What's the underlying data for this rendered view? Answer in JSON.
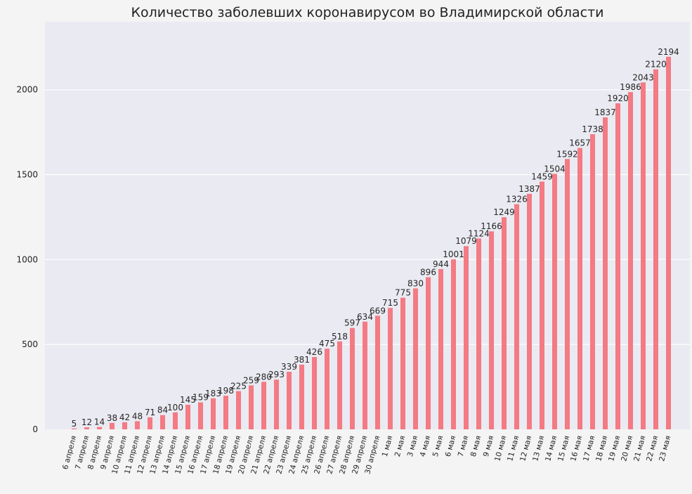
{
  "chart_data": {
    "type": "bar",
    "title": "Количество заболевших коронавирусом во Владимирской области",
    "xlabel": "",
    "ylabel": "",
    "ylim": [
      0,
      2400
    ],
    "yticks": [
      0,
      500,
      1000,
      1500,
      2000
    ],
    "grid": true,
    "colors": {
      "bar": "#f47a83",
      "plot_bg": "#eaeaf2",
      "grid": "#ffffff",
      "page_bg": "#f4f4f4"
    },
    "categories": [
      "6 апреля",
      "7 апреля",
      "8 апреля",
      "9 апреля",
      "10 апреля",
      "11 апреля",
      "12 апреля",
      "13 апреля",
      "14 апреля",
      "15 апреля",
      "16 апреля",
      "17 апреля",
      "18 апреля",
      "19 апреля",
      "20 апреля",
      "21 апреля",
      "22 апреля",
      "23 апреля",
      "24 апреля",
      "25 апреля",
      "26 апреля",
      "27 апреля",
      "28 апреля",
      "29 апреля",
      "30 апреля",
      "1 мая",
      "2 мая",
      "3 мая",
      "4 мая",
      "5 мая",
      "6 мая",
      "7 мая",
      "8 мая",
      "9 мая",
      "10 мая",
      "11 мая",
      "12 мая",
      "13 мая",
      "14 мая",
      "15 мая",
      "16 мая",
      "17 мая",
      "18 мая",
      "19 мая",
      "20 мая",
      "21 мая",
      "22 мая",
      "23 мая"
    ],
    "values": [
      5,
      12,
      14,
      38,
      42,
      48,
      71,
      84,
      100,
      145,
      159,
      183,
      198,
      225,
      259,
      280,
      293,
      339,
      381,
      426,
      475,
      518,
      597,
      634,
      669,
      715,
      775,
      830,
      896,
      944,
      1001,
      1079,
      1124,
      1166,
      1249,
      1326,
      1387,
      1459,
      1504,
      1592,
      1657,
      1738,
      1837,
      1920,
      1986,
      2043,
      2120,
      2194
    ]
  }
}
